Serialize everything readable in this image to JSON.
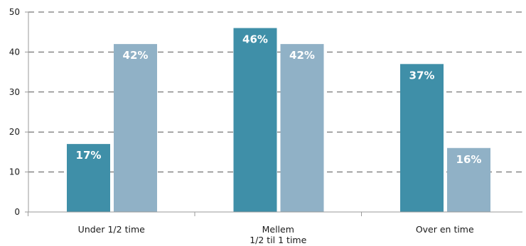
{
  "chart_data": {
    "type": "bar",
    "categories": [
      [
        "Under 1/2 time"
      ],
      [
        "Mellem",
        "1/2 til 1 time"
      ],
      [
        "Over en time"
      ]
    ],
    "series": [
      {
        "values": [
          17,
          46,
          37
        ],
        "labels": [
          "17%",
          "46%",
          "37%"
        ],
        "color": "#3f8fa8"
      },
      {
        "values": [
          42,
          42,
          16
        ],
        "labels": [
          "42%",
          "42%",
          "16%"
        ],
        "color": "#90b1c6"
      }
    ],
    "yticks": [
      0,
      10,
      20,
      30,
      40,
      50
    ],
    "ylim": [
      0,
      50
    ],
    "grid": true,
    "grid_style": "dashed",
    "gridline_color": "#555555",
    "axis_color": "#9a9a9a"
  }
}
